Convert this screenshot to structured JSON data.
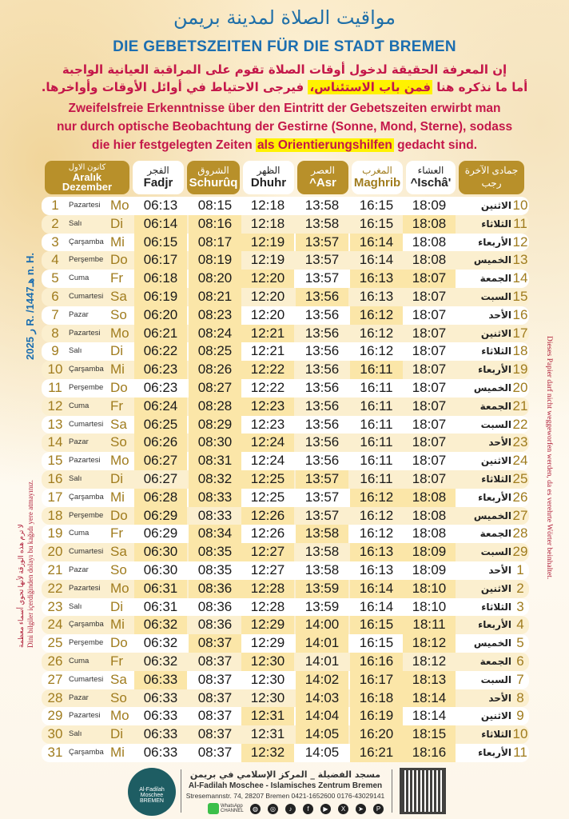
{
  "title_ar": "مواقيت الصلاة لمدينة بريمن",
  "title_de": "DIE GEBETSZEITEN FÜR DIE STADT BREMEN",
  "note_ar": {
    "line1": "إن المعرفة الحقيقة لدخول أوقات الصلاة تقوم على المراقبة العيانية الواجبة",
    "line2_a": "أما ما نذكره هنا ",
    "line2_hl": "فمن باب الاستئناس،",
    "line2_b": " فيرجى الاحتياط في أوائل الأوقات وأواخرها."
  },
  "note_de": {
    "line1": "Zweifelsfreie Erkenntnisse über den Eintritt der Gebetszeiten erwirbt man",
    "line2": "nur durch optische Beobachtung der Gestirne (Sonne, Mond, Sterne), sodass",
    "line3_a": "die hier festgelegten Zeiten ",
    "line3_hl": "als Orientierungshilfen",
    "line3_b": " gedacht sind."
  },
  "headers": {
    "month": {
      "ar": "كانون الاول",
      "tr": "Aralık",
      "de": "Dezember"
    },
    "fadjr": {
      "ar": "الفجر",
      "de": "Fadjr"
    },
    "schuruq": {
      "ar": "الشروق",
      "de": "Schurûq"
    },
    "dhuhr": {
      "ar": "الظهر",
      "de": "Dhuhr"
    },
    "asr": {
      "ar": "العصر",
      "de": "^Asr"
    },
    "maghrib": {
      "ar": "المغرب",
      "de": "Maghrib"
    },
    "ischa": {
      "ar": "العشاء",
      "de": "^Ischâ'"
    },
    "hijri": {
      "ar1": "جمادى الآخرة",
      "ar2": "رجب"
    }
  },
  "colors": {
    "gold": "#b8902a",
    "highlight": "#fbe6a8",
    "title_blue": "#1c6eb0",
    "note_red": "#c4174a"
  },
  "rows": [
    [
      "1",
      "Pazartesi",
      "Mo",
      "06:13",
      "08:15",
      "12:18",
      "13:58",
      "16:15",
      "18:09",
      "الاثنين",
      "10"
    ],
    [
      "2",
      "Salı",
      "Di",
      "06:14",
      "08:16",
      "12:18",
      "13:58",
      "16:15",
      "18:08",
      "الثلاثاء",
      "11"
    ],
    [
      "3",
      "Çarşamba",
      "Mi",
      "06:15",
      "08:17",
      "12:19",
      "13:57",
      "16:14",
      "18:08",
      "الأربعاء",
      "12"
    ],
    [
      "4",
      "Perşembe",
      "Do",
      "06:17",
      "08:19",
      "12:19",
      "13:57",
      "16:14",
      "18:08",
      "الخميس",
      "13"
    ],
    [
      "5",
      "Cuma",
      "Fr",
      "06:18",
      "08:20",
      "12:20",
      "13:57",
      "16:13",
      "18:07",
      "الجمعة",
      "14"
    ],
    [
      "6",
      "Cumartesi",
      "Sa",
      "06:19",
      "08:21",
      "12:20",
      "13:56",
      "16:13",
      "18:07",
      "السبت",
      "15"
    ],
    [
      "7",
      "Pazar",
      "So",
      "06:20",
      "08:23",
      "12:20",
      "13:56",
      "16:12",
      "18:07",
      "الأحد",
      "16"
    ],
    [
      "8",
      "Pazartesi",
      "Mo",
      "06:21",
      "08:24",
      "12:21",
      "13:56",
      "16:12",
      "18:07",
      "الاثنين",
      "17"
    ],
    [
      "9",
      "Salı",
      "Di",
      "06:22",
      "08:25",
      "12:21",
      "13:56",
      "16:12",
      "18:07",
      "الثلاثاء",
      "18"
    ],
    [
      "10",
      "Çarşamba",
      "Mi",
      "06:23",
      "08:26",
      "12:22",
      "13:56",
      "16:11",
      "18:07",
      "الأربعاء",
      "19"
    ],
    [
      "11",
      "Perşembe",
      "Do",
      "06:23",
      "08:27",
      "12:22",
      "13:56",
      "16:11",
      "18:07",
      "الخميس",
      "20"
    ],
    [
      "12",
      "Cuma",
      "Fr",
      "06:24",
      "08:28",
      "12:23",
      "13:56",
      "16:11",
      "18:07",
      "الجمعة",
      "21"
    ],
    [
      "13",
      "Cumartesi",
      "Sa",
      "06:25",
      "08:29",
      "12:23",
      "13:56",
      "16:11",
      "18:07",
      "السبت",
      "22"
    ],
    [
      "14",
      "Pazar",
      "So",
      "06:26",
      "08:30",
      "12:24",
      "13:56",
      "16:11",
      "18:07",
      "الأحد",
      "23"
    ],
    [
      "15",
      "Pazartesi",
      "Mo",
      "06:27",
      "08:31",
      "12:24",
      "13:56",
      "16:11",
      "18:07",
      "الاثنين",
      "24"
    ],
    [
      "16",
      "Salı",
      "Di",
      "06:27",
      "08:32",
      "12:25",
      "13:57",
      "16:11",
      "18:07",
      "الثلاثاء",
      "25"
    ],
    [
      "17",
      "Çarşamba",
      "Mi",
      "06:28",
      "08:33",
      "12:25",
      "13:57",
      "16:12",
      "18:08",
      "الأربعاء",
      "26"
    ],
    [
      "18",
      "Perşembe",
      "Do",
      "06:29",
      "08:33",
      "12:26",
      "13:57",
      "16:12",
      "18:08",
      "الخميس",
      "27"
    ],
    [
      "19",
      "Cuma",
      "Fr",
      "06:29",
      "08:34",
      "12:26",
      "13:58",
      "16:12",
      "18:08",
      "الجمعة",
      "28"
    ],
    [
      "20",
      "Cumartesi",
      "Sa",
      "06:30",
      "08:35",
      "12:27",
      "13:58",
      "16:13",
      "18:09",
      "السبت",
      "29"
    ],
    [
      "21",
      "Pazar",
      "So",
      "06:30",
      "08:35",
      "12:27",
      "13:58",
      "16:13",
      "18:09",
      "الأحد",
      "1"
    ],
    [
      "22",
      "Pazartesi",
      "Mo",
      "06:31",
      "08:36",
      "12:28",
      "13:59",
      "16:14",
      "18:10",
      "الاثنين",
      "2"
    ],
    [
      "23",
      "Salı",
      "Di",
      "06:31",
      "08:36",
      "12:28",
      "13:59",
      "16:14",
      "18:10",
      "الثلاثاء",
      "3"
    ],
    [
      "24",
      "Çarşamba",
      "Mi",
      "06:32",
      "08:36",
      "12:29",
      "14:00",
      "16:15",
      "18:11",
      "الأربعاء",
      "4"
    ],
    [
      "25",
      "Perşembe",
      "Do",
      "06:32",
      "08:37",
      "12:29",
      "14:01",
      "16:15",
      "18:12",
      "الخميس",
      "5"
    ],
    [
      "26",
      "Cuma",
      "Fr",
      "06:32",
      "08:37",
      "12:30",
      "14:01",
      "16:16",
      "18:12",
      "الجمعة",
      "6"
    ],
    [
      "27",
      "Cumartesi",
      "Sa",
      "06:33",
      "08:37",
      "12:30",
      "14:02",
      "16:17",
      "18:13",
      "السبت",
      "7"
    ],
    [
      "28",
      "Pazar",
      "So",
      "06:33",
      "08:37",
      "12:30",
      "14:03",
      "16:18",
      "18:14",
      "الأحد",
      "8"
    ],
    [
      "29",
      "Pazartesi",
      "Mo",
      "06:33",
      "08:37",
      "12:31",
      "14:04",
      "16:19",
      "18:14",
      "الاثنين",
      "9"
    ],
    [
      "30",
      "Salı",
      "Di",
      "06:33",
      "08:37",
      "12:31",
      "14:05",
      "16:20",
      "18:15",
      "الثلاثاء",
      "10"
    ],
    [
      "31",
      "Çarşamba",
      "Mi",
      "06:33",
      "08:37",
      "12:32",
      "14:05",
      "16:21",
      "18:16",
      "الأربعاء",
      "11"
    ]
  ],
  "side": {
    "year": "ر 2025 R. /1447هـ n. H.",
    "left_ar": "لا ترم هذه الورقة لأنها تحوي أسماء معظمة",
    "left_tr": "Dini bilgiler içerdiğinden dolayı bu kağıdı yere atmayınız.",
    "right_de": "Dieses Papier darf nicht weggeworfen werden, da es verehrte Wörter beinhaltet."
  },
  "footer": {
    "logo_text": "Al-Fadilah Moschee",
    "logo_city": "BREMEN",
    "name_ar": "مسجد الفضيلة _ المركز الإسلامي في بريمن",
    "name_de": "Al-Fadilah Moschee - Islamisches Zentrum Bremen",
    "address": "Stresemannstr. 74, 28207 Bremen  0421-1652600  0176-43029141",
    "whatsapp": "WhatsApp CHANNEL",
    "icons": [
      "globe-icon",
      "instagram-icon",
      "tiktok-icon",
      "facebook-icon",
      "youtube-icon",
      "x-icon",
      "telegram-icon",
      "pinterest-icon"
    ]
  }
}
